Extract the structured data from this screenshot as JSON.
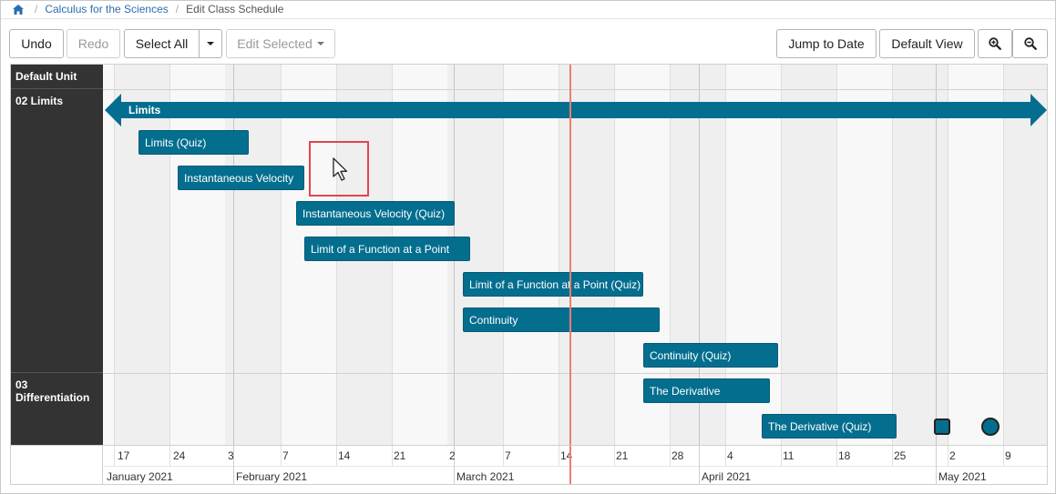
{
  "breadcrumb": {
    "home_icon": "home-icon",
    "course": "Calculus for the Sciences",
    "current": "Edit Class Schedule"
  },
  "toolbar": {
    "undo": "Undo",
    "redo": "Redo",
    "select_all": "Select All",
    "edit_selected": "Edit Selected",
    "jump_to_date": "Jump to Date",
    "default_view": "Default View",
    "zoom_in_icon": "zoom-in-icon",
    "zoom_out_icon": "zoom-out-icon"
  },
  "units": [
    {
      "label": "Default Unit"
    },
    {
      "label": "02 Limits"
    },
    {
      "label": "03 Differentiation"
    }
  ],
  "unit_bar": {
    "label": "Limits"
  },
  "items": [
    {
      "label": "Limits (Quiz)"
    },
    {
      "label": "Instantaneous Velocity"
    },
    {
      "label": "Instantaneous Velocity (Quiz)"
    },
    {
      "label": "Limit of a Function at a Point"
    },
    {
      "label": "Limit of a Function at a Point (Quiz)"
    },
    {
      "label": "Continuity"
    },
    {
      "label": "Continuity (Quiz)"
    },
    {
      "label": "The Derivative"
    },
    {
      "label": "The Derivative (Quiz)"
    }
  ],
  "axis": {
    "days": [
      "17",
      "24",
      "3",
      "7",
      "14",
      "21",
      "2",
      "7",
      "14",
      "21",
      "28",
      "4",
      "11",
      "18",
      "25",
      "2",
      "9"
    ],
    "months": [
      "January 2021",
      "February 2021",
      "March 2021",
      "April 2021",
      "May 2021"
    ]
  },
  "colors": {
    "bar": "#046e8f",
    "unit_column": "#333333",
    "today_line": "#e8806e",
    "selection": "#e0454f"
  }
}
